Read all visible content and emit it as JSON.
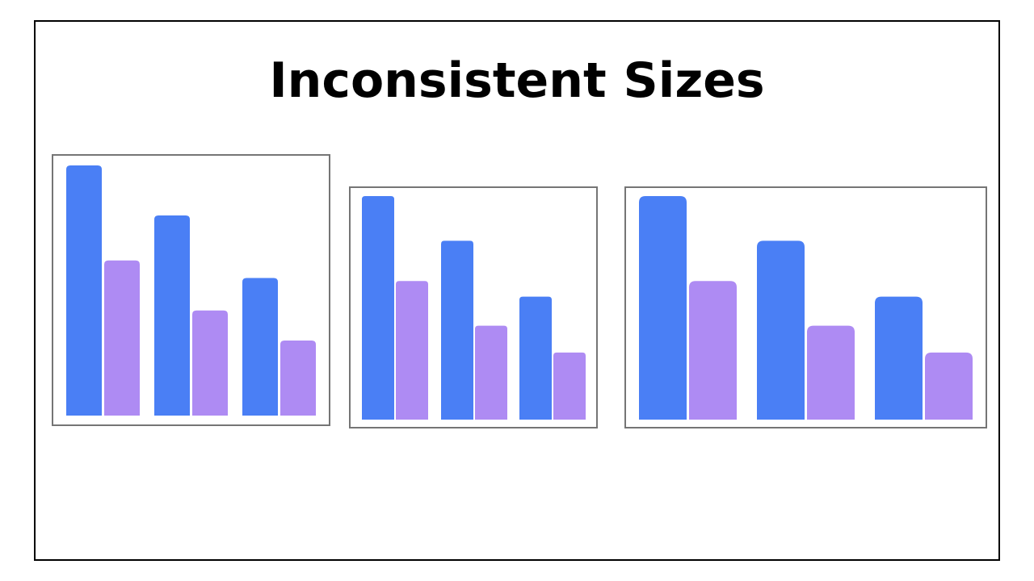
{
  "title": "Inconsistent Sizes",
  "colors": {
    "series_a": "#4a7ff5",
    "series_b": "#ae8bf3",
    "panel_border": "#757575",
    "frame_border": "#000000"
  },
  "chart_data": [
    {
      "type": "bar",
      "categories": [
        "",
        "",
        ""
      ],
      "series": [
        {
          "values": [
            100,
            80,
            55
          ]
        },
        {
          "values": [
            62,
            42,
            30
          ]
        }
      ],
      "ylim": [
        0,
        100
      ],
      "grid": false,
      "legend": "none"
    },
    {
      "type": "bar",
      "categories": [
        "",
        "",
        ""
      ],
      "series": [
        {
          "values": [
            100,
            80,
            55
          ]
        },
        {
          "values": [
            62,
            42,
            30
          ]
        }
      ],
      "ylim": [
        0,
        100
      ],
      "grid": false,
      "legend": "none"
    },
    {
      "type": "bar",
      "categories": [
        "",
        "",
        ""
      ],
      "series": [
        {
          "values": [
            100,
            80,
            55
          ]
        },
        {
          "values": [
            62,
            42,
            30
          ]
        }
      ],
      "ylim": [
        0,
        100
      ],
      "grid": false,
      "legend": "none"
    }
  ]
}
